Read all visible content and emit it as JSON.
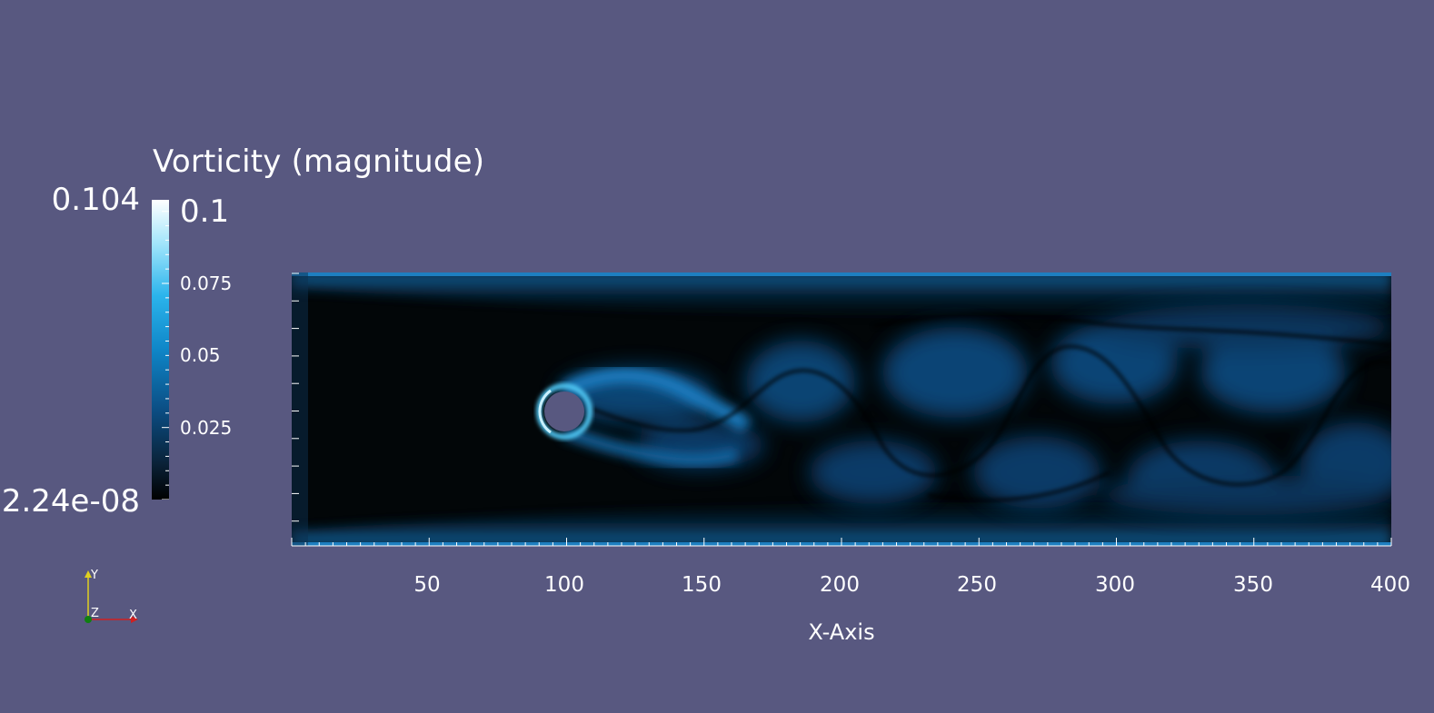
{
  "legend": {
    "title": "Vorticity (magnitude)",
    "max_label": "0.104",
    "min_label": "2.24e-08",
    "ticks": [
      "0.1",
      "0.075",
      "0.05",
      "0.025"
    ],
    "tick_values": [
      0.1,
      0.075,
      0.05,
      0.025
    ],
    "range": [
      2.24e-08,
      0.104
    ]
  },
  "axis": {
    "title": "X-Axis",
    "tick_labels": [
      "50",
      "100",
      "150",
      "200",
      "250",
      "300",
      "350",
      "400"
    ],
    "tick_values": [
      50,
      100,
      150,
      200,
      250,
      300,
      350,
      400
    ],
    "range": [
      0,
      400
    ]
  },
  "orientation": {
    "y": "Y",
    "z": "Z",
    "x": "X"
  },
  "colors": {
    "background": "#585880",
    "colormap": [
      "#000000",
      "#0a2a48",
      "#0b5a94",
      "#1aa0e0",
      "#9fe6ff",
      "#ffffff"
    ],
    "axis_x": "#d02020",
    "axis_y": "#e0d020",
    "axis_z": "#108010"
  }
}
